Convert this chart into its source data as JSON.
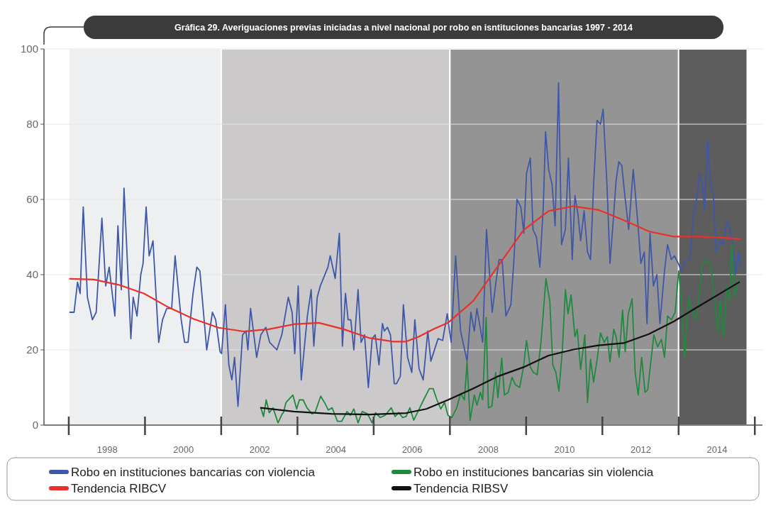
{
  "chart_data": {
    "type": "line",
    "title": "Gráfica 29. Averiguaciones previas iniciadas a nivel nacional por robo en isntituciones bancarias 1997 - 2014",
    "xlim": [
      1996.35,
      2015.2
    ],
    "ylim": [
      0,
      100
    ],
    "xticks": [
      1998,
      2000,
      2002,
      2004,
      2006,
      2008,
      2010,
      2012,
      2014
    ],
    "yticks": [
      0,
      20,
      40,
      60,
      80,
      100
    ],
    "grid": "y",
    "legend": "bottom",
    "bands": [
      {
        "axis": "x",
        "from": 1997,
        "to": 2001,
        "color": "#eeeff1"
      },
      {
        "axis": "x",
        "from": 2001,
        "to": 2007,
        "color": "#cbc9ca"
      },
      {
        "axis": "x",
        "from": 2007,
        "to": 2013,
        "color": "#959494"
      },
      {
        "axis": "x",
        "from": 2013,
        "to": 2014.8,
        "color": "#5e5d5d"
      }
    ],
    "series": [
      {
        "name": "Robo en instituciones bancarias con violencia",
        "color": "#3f57a8",
        "x": [
          1997.03,
          1997.14,
          1997.23,
          1997.3,
          1997.38,
          1997.49,
          1997.62,
          1997.72,
          1997.87,
          1997.97,
          1998.06,
          1998.21,
          1998.29,
          1998.38,
          1998.45,
          1998.63,
          1998.69,
          1998.79,
          1998.89,
          1998.95,
          1999.03,
          1999.11,
          1999.21,
          1999.36,
          1999.46,
          1999.57,
          1999.7,
          1999.79,
          1999.95,
          2000.04,
          2000.13,
          2000.26,
          2000.36,
          2000.44,
          2000.62,
          2000.77,
          2000.855,
          2000.97,
          2001.01,
          2001.11,
          2001.2,
          2001.28,
          2001.35,
          2001.44,
          2001.56,
          2001.65,
          2001.7,
          2001.77,
          2001.93,
          2002.04,
          2002.17,
          2002.27,
          2002.46,
          2002.59,
          2002.76,
          2002.86,
          2002.93,
          2003.02,
          2003.1,
          2003.26,
          2003.36,
          2003.43,
          2003.52,
          2003.6,
          2003.8,
          2003.86,
          2003.99,
          2004.1,
          2004.18,
          2004.26,
          2004.33,
          2004.4,
          2004.48,
          2004.59,
          2004.67,
          2004.76,
          2004.86,
          2004.96,
          2005.04,
          2005.14,
          2005.23,
          2005.28,
          2005.36,
          2005.44,
          2005.54,
          2005.6,
          2005.7,
          2005.78,
          2005.89,
          2006.0,
          2006.08,
          2006.19,
          2006.3,
          2006.42,
          2006.5,
          2006.69,
          2006.81,
          2006.93,
          2007.03,
          2007.15,
          2007.28,
          2007.45,
          2007.55,
          2007.64,
          2007.71,
          2007.86,
          2007.96,
          2008.11,
          2008.22,
          2008.29,
          2008.37,
          2008.47,
          2008.6,
          2008.68,
          2008.76,
          2008.86,
          2008.94,
          2009.01,
          2009.11,
          2009.18,
          2009.27,
          2009.36,
          2009.45,
          2009.51,
          2009.59,
          2009.68,
          2009.76,
          2009.85,
          2009.93,
          2010.03,
          2010.11,
          2010.21,
          2010.28,
          2010.36,
          2010.43,
          2010.52,
          2010.61,
          2010.69,
          2010.77,
          2010.86,
          2010.95,
          2011.02,
          2011.12,
          2011.2,
          2011.29,
          2011.36,
          2011.43,
          2011.51,
          2011.59,
          2011.69,
          2011.81,
          2011.92,
          2012.01,
          2012.1,
          2012.17,
          2012.25,
          2012.34,
          2012.43,
          2012.51,
          2012.63,
          2012.71,
          2012.81,
          2012.89,
          2012.99,
          2013.07,
          2013.2,
          2013.3,
          2013.39,
          2013.47,
          2013.55,
          2013.62,
          2013.68,
          2013.76,
          2013.85,
          2013.91,
          2013.98,
          2014.09,
          2014.17,
          2014.26,
          2014.33,
          2014.4,
          2014.49,
          2014.57,
          2014.62
        ],
        "values": [
          30,
          30,
          38,
          35,
          58,
          34,
          28,
          30,
          55,
          37,
          42,
          29,
          53,
          36,
          63,
          23,
          34,
          29,
          40,
          43,
          58,
          45,
          49,
          22,
          28,
          31,
          31,
          45,
          28,
          22,
          22,
          35,
          42,
          41,
          20,
          30,
          28,
          19.5,
          19,
          32,
          16,
          12,
          18,
          5,
          24,
          25,
          20,
          31,
          18,
          24,
          26,
          22,
          20,
          24,
          34,
          30,
          19,
          37,
          12,
          29,
          36,
          21,
          34,
          37,
          42,
          45,
          39,
          51,
          21,
          35,
          28,
          28,
          20,
          36,
          22,
          24,
          10,
          23,
          24,
          16,
          27,
          25,
          26,
          24,
          11,
          11,
          13,
          32,
          18,
          14,
          28,
          15,
          12,
          25,
          17,
          23,
          22.5,
          29.6,
          22,
          45,
          25,
          17,
          30,
          25,
          31,
          22,
          52,
          30,
          39,
          44,
          44,
          29,
          32,
          44,
          60,
          58,
          51,
          67,
          71,
          52,
          50,
          42,
          58,
          78,
          68,
          64,
          53,
          91,
          48,
          52,
          71,
          44,
          61,
          56,
          49,
          57,
          46,
          44,
          64,
          81,
          80,
          84,
          64,
          43,
          55,
          65,
          70,
          69,
          61,
          52,
          68,
          55,
          43,
          46,
          27,
          51,
          37,
          40,
          27,
          41,
          48,
          44,
          45,
          43,
          41,
          44,
          44,
          56,
          60,
          67,
          64,
          57,
          76,
          63,
          62,
          46,
          49,
          48,
          54,
          53,
          49,
          40,
          46,
          42
        ]
      },
      {
        "name": "Robo en instituciones bancarias sin violencia",
        "color": "#1f8a3f",
        "x": [
          2002.04,
          2002.11,
          2002.18,
          2002.26,
          2002.36,
          2002.49,
          2002.6,
          2002.63,
          2002.7,
          2002.88,
          2002.98,
          2003.05,
          2003.15,
          2003.25,
          2003.38,
          2003.46,
          2003.61,
          2003.71,
          2003.81,
          2003.91,
          2004.05,
          2004.16,
          2004.3,
          2004.39,
          2004.48,
          2004.59,
          2004.7,
          2004.84,
          2004.96,
          2005.05,
          2005.17,
          2005.3,
          2005.46,
          2005.56,
          2005.66,
          2005.76,
          2005.85,
          2005.95,
          2006.05,
          2006.18,
          2006.31,
          2006.46,
          2006.56,
          2006.66,
          2006.76,
          2006.86,
          2006.95,
          2007.05,
          2007.18,
          2007.28,
          2007.38,
          2007.45,
          2007.53,
          2007.64,
          2007.71,
          2007.8,
          2007.86,
          2007.95,
          2008.01,
          2008.1,
          2008.2,
          2008.26,
          2008.36,
          2008.43,
          2008.53,
          2008.63,
          2008.72,
          2008.83,
          2008.93,
          2009.01,
          2009.11,
          2009.19,
          2009.29,
          2009.39,
          2009.52,
          2009.62,
          2009.7,
          2009.78,
          2009.86,
          2009.95,
          2010.03,
          2010.1,
          2010.18,
          2010.28,
          2010.34,
          2010.43,
          2010.54,
          2010.61,
          2010.69,
          2010.77,
          2010.87,
          2010.95,
          2011.05,
          2011.13,
          2011.2,
          2011.3,
          2011.36,
          2011.44,
          2011.53,
          2011.6,
          2011.68,
          2011.78,
          2011.86,
          2011.94,
          2012.03,
          2012.12,
          2012.19,
          2012.35,
          2012.45,
          2012.55,
          2012.63,
          2012.71,
          2012.81,
          2012.91,
          2013.0,
          2013.07,
          2013.16,
          2013.26,
          2013.36,
          2013.46,
          2013.53,
          2013.61,
          2013.7,
          2013.8,
          2013.86,
          2013.94,
          2014.03,
          2014.09,
          2014.18,
          2014.26,
          2014.34,
          2014.4,
          2014.48,
          2014.57
        ],
        "values": [
          4.6,
          2.3,
          6.7,
          3.3,
          4.6,
          0.6,
          3,
          3.3,
          6,
          8,
          4.3,
          6.7,
          6.7,
          4.6,
          3,
          3.3,
          7.7,
          6,
          4,
          4.6,
          1,
          1,
          3.6,
          2.6,
          4.3,
          0.6,
          3.6,
          3,
          0.6,
          3.3,
          2,
          2.6,
          4.6,
          2.3,
          3.3,
          2,
          2.3,
          4.6,
          1.3,
          4,
          6.7,
          9.7,
          9.7,
          6.7,
          4.3,
          6,
          2.6,
          2,
          4.6,
          8.4,
          6.7,
          16.8,
          1.3,
          8,
          5.3,
          8.7,
          6.7,
          28.6,
          4.6,
          5,
          14,
          7.3,
          17.8,
          8,
          8.7,
          12.7,
          10.7,
          10,
          15.4,
          22.5,
          15.4,
          14,
          13.4,
          22,
          39,
          33,
          16,
          14,
          9,
          20,
          36,
          29.6,
          34.6,
          23.5,
          25.5,
          14.8,
          24,
          6,
          17.5,
          11.4,
          18,
          24.5,
          22,
          23.5,
          16.8,
          25.5,
          23.5,
          18,
          30.6,
          19.5,
          29.6,
          33.6,
          14,
          8,
          18,
          8.7,
          9.4,
          24,
          20.8,
          22.8,
          18,
          29,
          28,
          30,
          41,
          34,
          18,
          34,
          30,
          28,
          34,
          42,
          44,
          43,
          41,
          33.6,
          25,
          33,
          23.5,
          37,
          33,
          48,
          34,
          39
        ]
      },
      {
        "name": "Tendencia RIBCV",
        "color": "#e8312a",
        "x": [
          1997.03,
          1997.66,
          1998.31,
          1998.97,
          1999.62,
          2000.28,
          2000.93,
          2001.59,
          2002.25,
          2002.9,
          2003.56,
          2004.21,
          2004.87,
          2005.52,
          2005.85,
          2006.18,
          2006.57,
          2006.95,
          2007.61,
          2008.27,
          2008.93,
          2009.59,
          2010.24,
          2010.9,
          2011.56,
          2012.22,
          2012.88,
          2013.53,
          2014.19,
          2014.62
        ],
        "values": [
          38.9,
          38.7,
          37.3,
          35,
          31.3,
          28.2,
          25.9,
          24.9,
          25.5,
          26.8,
          27.2,
          25.5,
          23.2,
          22.2,
          22.2,
          23.5,
          25.5,
          27.2,
          33,
          42.4,
          51.8,
          56.9,
          58.2,
          57.2,
          54.5,
          51.5,
          50.1,
          50.1,
          49.8,
          49.5
        ]
      },
      {
        "name": "Tendencia RIBSV",
        "color": "#111111",
        "x": [
          2002.04,
          2002.9,
          2003.89,
          2004.87,
          2005.85,
          2006.38,
          2006.95,
          2007.61,
          2008.27,
          2008.93,
          2009.59,
          2010.24,
          2010.9,
          2011.56,
          2012.22,
          2012.88,
          2013.53,
          2014.19,
          2014.59
        ],
        "values": [
          4.6,
          3.6,
          3,
          2.8,
          3.2,
          4.3,
          6.7,
          9.7,
          13,
          15.4,
          18.5,
          20.1,
          21.2,
          21.8,
          24.2,
          27.6,
          31.6,
          35.6,
          38
        ]
      }
    ]
  }
}
